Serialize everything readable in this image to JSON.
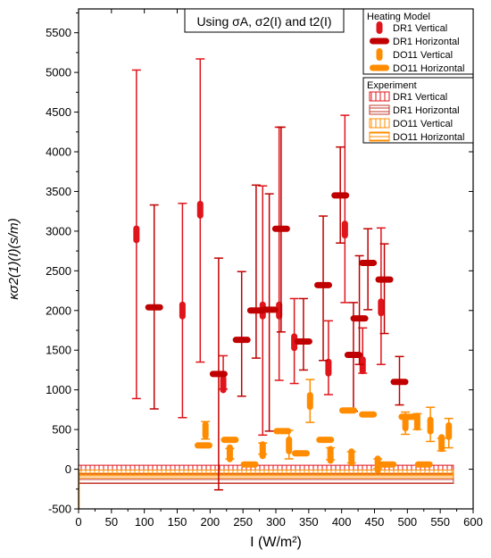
{
  "chart_data": {
    "type": "scatter",
    "title": "Using σA, σ2(I)  and t2(I)",
    "xlabel": "I (W/m²)",
    "ylabel": "κσ2(1)(I)(s/m)",
    "xlim": [
      0,
      600
    ],
    "ylim": [
      -500,
      5800
    ],
    "xticks": [
      "0",
      "50",
      "100",
      "150",
      "200",
      "250",
      "300",
      "350",
      "400",
      "450",
      "500",
      "550",
      "600"
    ],
    "yticks": [
      "-500",
      "0",
      "500",
      "1000",
      "1500",
      "2000",
      "2500",
      "3000",
      "3500",
      "4000",
      "4500",
      "5000",
      "5500"
    ],
    "grid": false,
    "legend_placement": "top-right",
    "legend_groups": [
      {
        "title": "Heating Model",
        "entries": [
          "DR1 Vertical",
          "DR1 Horizontal",
          "DO11 Vertical",
          "DO11 Horizontal"
        ]
      },
      {
        "title": "Experiment",
        "entries": [
          "DR1 Vertical",
          "DR1 Horizontal",
          "DO11 Vertical",
          "DO11 Horizontal"
        ]
      }
    ],
    "series": [
      {
        "name": "DR1 Vertical",
        "group": "Heating Model",
        "color": "#e0141b",
        "marker": "vbar",
        "points": [
          [
            88,
            2960,
            890,
            5030
          ],
          [
            158,
            2000,
            650,
            3350
          ],
          [
            185,
            3270,
            1350,
            5170
          ],
          [
            220,
            1070,
            1010,
            1430
          ],
          [
            280,
            2000,
            430,
            3570
          ],
          [
            305,
            2000,
            1120,
            4310
          ],
          [
            328,
            1600,
            1080,
            2150
          ],
          [
            380,
            1280,
            940,
            1870
          ],
          [
            405,
            3020,
            2100,
            4460
          ],
          [
            432,
            1310,
            1210,
            1780
          ],
          [
            460,
            2040,
            1320,
            3040
          ]
        ]
      },
      {
        "name": "DR1 Horizontal",
        "group": "Heating Model",
        "color": "#c00000",
        "marker": "hbar",
        "points": [
          [
            115,
            2040,
            760,
            3330
          ],
          [
            213,
            1200,
            -260,
            2660
          ],
          [
            248,
            1630,
            920,
            2490
          ],
          [
            270,
            2000,
            1400,
            3580
          ],
          [
            290,
            2010,
            480,
            3470
          ],
          [
            308,
            3030,
            1730,
            4310
          ],
          [
            342,
            1610,
            1250,
            2150
          ],
          [
            372,
            2320,
            1370,
            3190
          ],
          [
            398,
            3450,
            2850,
            4060
          ],
          [
            418,
            1440,
            730,
            2100
          ],
          [
            427,
            1900,
            1320,
            2690
          ],
          [
            440,
            2600,
            2010,
            3030
          ],
          [
            465,
            2390,
            1710,
            2840
          ],
          [
            488,
            1100,
            810,
            1420
          ]
        ]
      },
      {
        "name": "DO11 Vertical",
        "group": "Heating Model",
        "color": "#ff8c00",
        "marker": "vbar",
        "points": [
          [
            193,
            490,
            380,
            600
          ],
          [
            230,
            200,
            130,
            260
          ],
          [
            280,
            240,
            190,
            330
          ],
          [
            320,
            300,
            130,
            490
          ],
          [
            352,
            860,
            590,
            1130
          ],
          [
            383,
            180,
            120,
            270
          ],
          [
            415,
            150,
            80,
            220
          ],
          [
            455,
            60,
            10,
            130
          ],
          [
            497,
            590,
            440,
            720
          ],
          [
            515,
            600,
            500,
            700
          ],
          [
            535,
            550,
            350,
            780
          ],
          [
            552,
            330,
            230,
            390
          ],
          [
            563,
            480,
            270,
            640
          ]
        ]
      },
      {
        "name": "DO11 Horizontal",
        "group": "Heating Model",
        "color": "#ff8c00",
        "marker": "hbar",
        "points": [
          [
            190,
            300,
            null,
            null
          ],
          [
            230,
            370,
            null,
            null
          ],
          [
            260,
            60,
            null,
            null
          ],
          [
            310,
            480,
            null,
            null
          ],
          [
            338,
            200,
            null,
            null
          ],
          [
            375,
            370,
            null,
            null
          ],
          [
            410,
            740,
            null,
            null
          ],
          [
            440,
            690,
            null,
            null
          ],
          [
            470,
            60,
            null,
            null
          ],
          [
            500,
            660,
            null,
            null
          ],
          [
            525,
            60,
            null,
            null
          ]
        ]
      }
    ],
    "experiment": [
      {
        "name": "DR1 Vertical",
        "color": "#e0141b",
        "center": 0,
        "half": 50
      },
      {
        "name": "DR1 Horizontal",
        "color": "#c0392b",
        "center": -120,
        "half": 60
      },
      {
        "name": "DO11 Vertical",
        "color": "#ff8c00",
        "center": -40,
        "half": 30
      },
      {
        "name": "DO11 Horizontal",
        "color": "#ff8c00",
        "center": -80,
        "half": 30
      }
    ]
  }
}
